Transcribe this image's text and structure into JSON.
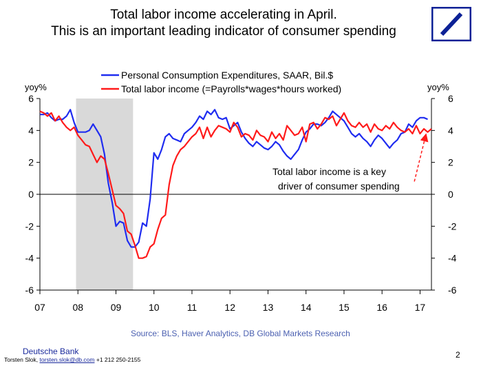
{
  "slide": {
    "title_line1": "Total labor income accelerating in April.",
    "title_line2": "This is an important leading indicator of consumer spending",
    "source": "Source: BLS, Haver Analytics, DB Global Markets Research",
    "company": "Deutsche Bank",
    "author": "Torsten Slok,",
    "email": "torsten.slok@db.com",
    "phone": "+1 212 250-2155",
    "page_number": "2",
    "logo": "deutsche-bank-logo",
    "brand_color": "#0c2196"
  },
  "chart_data": {
    "type": "line",
    "title": "",
    "y_left_label": "yoy%",
    "y_right_label": "yoy%",
    "ylim": [
      -6,
      6
    ],
    "y_ticks": [
      6,
      4,
      2,
      0,
      -2,
      -4,
      -6
    ],
    "y_tick_labels": [
      "6",
      "4",
      "2",
      "0",
      "-2",
      "-4",
      "-6"
    ],
    "xlim": [
      2007.0,
      2017.3
    ],
    "x_ticks": [
      2007,
      2008,
      2009,
      2010,
      2011,
      2012,
      2013,
      2014,
      2015,
      2016,
      2017
    ],
    "x_tick_labels": [
      "07",
      "08",
      "09",
      "10",
      "11",
      "12",
      "13",
      "14",
      "15",
      "16",
      "17"
    ],
    "recession_shading": {
      "start": 2007.95,
      "end": 2009.45,
      "color": "#d9d9d9"
    },
    "legend": {
      "position": "top-center"
    },
    "grid": false,
    "series": [
      {
        "name": "Personal Consumption Expenditures, SAAR, Bil.$",
        "color": "#1f2cf0",
        "x": [
          2007.0,
          2007.1,
          2007.2,
          2007.3,
          2007.4,
          2007.5,
          2007.6,
          2007.7,
          2007.8,
          2007.9,
          2008.0,
          2008.1,
          2008.2,
          2008.3,
          2008.4,
          2008.5,
          2008.6,
          2008.7,
          2008.8,
          2008.9,
          2009.0,
          2009.1,
          2009.2,
          2009.3,
          2009.4,
          2009.5,
          2009.6,
          2009.7,
          2009.8,
          2009.9,
          2010.0,
          2010.1,
          2010.2,
          2010.3,
          2010.4,
          2010.5,
          2010.6,
          2010.7,
          2010.8,
          2010.9,
          2011.0,
          2011.1,
          2011.2,
          2011.3,
          2011.4,
          2011.5,
          2011.6,
          2011.7,
          2011.8,
          2011.9,
          2012.0,
          2012.1,
          2012.2,
          2012.3,
          2012.4,
          2012.5,
          2012.6,
          2012.7,
          2012.8,
          2012.9,
          2013.0,
          2013.1,
          2013.2,
          2013.3,
          2013.4,
          2013.5,
          2013.6,
          2013.7,
          2013.8,
          2013.9,
          2014.0,
          2014.1,
          2014.2,
          2014.3,
          2014.4,
          2014.5,
          2014.6,
          2014.7,
          2014.8,
          2014.9,
          2015.0,
          2015.1,
          2015.2,
          2015.3,
          2015.4,
          2015.5,
          2015.6,
          2015.7,
          2015.8,
          2015.9,
          2016.0,
          2016.1,
          2016.2,
          2016.3,
          2016.4,
          2016.5,
          2016.6,
          2016.7,
          2016.8,
          2016.9,
          2017.0,
          2017.1,
          2017.2
        ],
        "values": [
          5.0,
          5.0,
          5.1,
          4.8,
          4.6,
          4.7,
          4.7,
          4.9,
          5.3,
          4.5,
          3.9,
          3.9,
          3.9,
          4.0,
          4.4,
          4.0,
          3.6,
          2.5,
          0.7,
          -0.5,
          -2.0,
          -1.7,
          -1.8,
          -2.9,
          -3.3,
          -3.3,
          -3.0,
          -1.8,
          -2.0,
          -0.3,
          2.6,
          2.2,
          2.8,
          3.6,
          3.8,
          3.5,
          3.4,
          3.3,
          3.8,
          4.0,
          4.2,
          4.5,
          4.9,
          4.7,
          5.2,
          5.0,
          5.3,
          4.8,
          4.7,
          4.8,
          4.1,
          4.3,
          4.5,
          3.9,
          3.5,
          3.2,
          3.0,
          3.3,
          3.1,
          2.9,
          2.8,
          3.0,
          3.3,
          3.1,
          2.7,
          2.4,
          2.2,
          2.5,
          2.8,
          3.4,
          3.9,
          4.1,
          4.4,
          4.4,
          4.3,
          4.5,
          4.8,
          5.2,
          5.0,
          4.8,
          4.6,
          4.2,
          3.8,
          3.6,
          3.8,
          3.5,
          3.3,
          3.0,
          3.4,
          3.7,
          3.5,
          3.2,
          2.9,
          3.2,
          3.4,
          3.8,
          3.9,
          4.4,
          4.2,
          4.6,
          4.8,
          4.8,
          4.7
        ]
      },
      {
        "name": "Total labor income (=Payrolls*wages*hours worked)",
        "color": "#ff1a1a",
        "x": [
          2007.0,
          2007.1,
          2007.2,
          2007.3,
          2007.4,
          2007.5,
          2007.6,
          2007.7,
          2007.8,
          2007.9,
          2008.0,
          2008.1,
          2008.2,
          2008.3,
          2008.4,
          2008.5,
          2008.6,
          2008.7,
          2008.8,
          2008.9,
          2009.0,
          2009.1,
          2009.2,
          2009.3,
          2009.4,
          2009.5,
          2009.6,
          2009.7,
          2009.8,
          2009.9,
          2010.0,
          2010.1,
          2010.2,
          2010.3,
          2010.4,
          2010.5,
          2010.6,
          2010.7,
          2010.8,
          2010.9,
          2011.0,
          2011.1,
          2011.2,
          2011.3,
          2011.4,
          2011.5,
          2011.6,
          2011.7,
          2011.8,
          2011.9,
          2012.0,
          2012.1,
          2012.2,
          2012.3,
          2012.4,
          2012.5,
          2012.6,
          2012.7,
          2012.8,
          2012.9,
          2013.0,
          2013.1,
          2013.2,
          2013.3,
          2013.4,
          2013.5,
          2013.6,
          2013.7,
          2013.8,
          2013.9,
          2014.0,
          2014.1,
          2014.2,
          2014.3,
          2014.4,
          2014.5,
          2014.6,
          2014.7,
          2014.8,
          2014.9,
          2015.0,
          2015.1,
          2015.2,
          2015.3,
          2015.4,
          2015.5,
          2015.6,
          2015.7,
          2015.8,
          2015.9,
          2016.0,
          2016.1,
          2016.2,
          2016.3,
          2016.4,
          2016.5,
          2016.6,
          2016.7,
          2016.8,
          2016.9,
          2017.0,
          2017.1,
          2017.2,
          2017.3
        ],
        "values": [
          5.2,
          5.1,
          4.9,
          5.1,
          4.6,
          4.9,
          4.5,
          4.2,
          4.0,
          4.2,
          3.7,
          3.4,
          3.1,
          3.0,
          2.5,
          2.0,
          2.4,
          2.2,
          1.3,
          0.3,
          -0.7,
          -0.9,
          -1.2,
          -2.3,
          -2.5,
          -3.2,
          -4.0,
          -4.0,
          -3.9,
          -3.3,
          -3.1,
          -2.2,
          -1.5,
          -1.3,
          0.6,
          1.8,
          2.4,
          2.8,
          3.0,
          3.3,
          3.6,
          3.8,
          4.2,
          3.5,
          4.2,
          3.6,
          4.0,
          4.3,
          4.2,
          4.1,
          3.9,
          4.5,
          4.2,
          3.6,
          3.8,
          3.7,
          3.4,
          4.0,
          3.7,
          3.6,
          3.3,
          3.9,
          3.5,
          3.8,
          3.4,
          4.3,
          4.0,
          3.7,
          3.8,
          4.2,
          3.3,
          4.4,
          4.5,
          4.1,
          4.4,
          4.8,
          4.7,
          4.9,
          4.3,
          4.7,
          5.1,
          4.6,
          4.3,
          4.2,
          4.5,
          4.2,
          4.4,
          3.9,
          4.4,
          4.1,
          4.0,
          4.3,
          4.1,
          4.5,
          4.2,
          4.0,
          3.9,
          4.1,
          3.8,
          4.3,
          3.8,
          4.1,
          3.9,
          4.1
        ]
      }
    ],
    "annotation": {
      "line1": "Total labor income is a key",
      "line2": "driver of consumer spending",
      "arrow_color": "#ff1a1a",
      "arrow_from": [
        2016.85,
        0.8
      ],
      "arrow_to": [
        2017.15,
        3.7
      ]
    }
  }
}
